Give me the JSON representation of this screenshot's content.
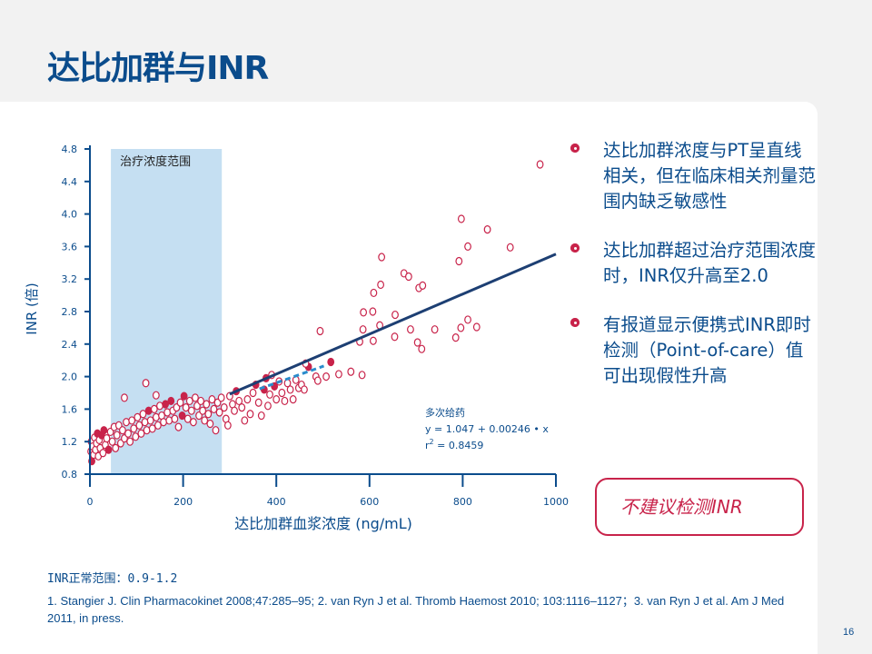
{
  "slide": {
    "title": "达比加群与INR",
    "page_number": "16",
    "bullets": [
      "达比加群浓度与PT呈直线相关，但在临床相关剂量范围内缺乏敏感性",
      "达比加群超过治疗范围浓度时，INR仅升高至2.0",
      "有报道显示便携式INR即时检测（Point-of-care）值可出现假性升高"
    ],
    "callout": "不建议检测INR",
    "normal_range": "INR正常范围：0.9-1.2",
    "references": "1. Stangier J. Clin Pharmacokinet 2008;47:285–95; 2. van Ryn J et al. Thromb Haemost 2010; 103:1116–1127；3. van Ryn J et al. Am J Med 2011, in press.",
    "colors": {
      "brand_blue": "#0b4c8c",
      "accent_red": "#c8234a",
      "shade": "#c5dff2",
      "dashed": "#2a8ccc"
    }
  },
  "chart_data": {
    "type": "scatter",
    "xlabel": "达比加群血浆浓度 (ng/mL)",
    "ylabel": "INR (倍)",
    "xlim": [
      0,
      1000
    ],
    "ylim": [
      0.8,
      4.8
    ],
    "xticks": [
      "0",
      "200",
      "400",
      "600",
      "800",
      "1000"
    ],
    "xtick_values": [
      0,
      200,
      400,
      600,
      800,
      1000
    ],
    "yticks": [
      "0.8",
      "1.2",
      "1.6",
      "2.0",
      "2.4",
      "2.8",
      "3.2",
      "3.6",
      "4.0",
      "4.4",
      "4.8"
    ],
    "ytick_values": [
      0.8,
      1.2,
      1.6,
      2.0,
      2.4,
      2.8,
      3.2,
      3.6,
      4.0,
      4.4,
      4.8
    ],
    "shaded_region": {
      "label": "治疗浓度范围",
      "x_range": [
        45,
        283
      ]
    },
    "regression": {
      "intercept": 1.047,
      "slope": 0.00246,
      "x_range": [
        300,
        1000
      ]
    },
    "dashed_fit": {
      "points": [
        [
          364,
          1.85
        ],
        [
          502,
          2.13
        ]
      ]
    },
    "annotation": {
      "line1": "多次给药",
      "line2": "y = 1.047 + 0.00246 • x",
      "line3_prefix": "r",
      "line3_sup": "2",
      "line3_suffix": " = 0.8459"
    },
    "points": [
      [
        966,
        4.61,
        0
      ],
      [
        797,
        3.94,
        0
      ],
      [
        853,
        3.81,
        0
      ],
      [
        811,
        3.6,
        0
      ],
      [
        902,
        3.59,
        0
      ],
      [
        792,
        3.42,
        0
      ],
      [
        626,
        3.47,
        0
      ],
      [
        674,
        3.27,
        0
      ],
      [
        684,
        3.23,
        0
      ],
      [
        624,
        3.13,
        0
      ],
      [
        609,
        3.03,
        0
      ],
      [
        706,
        3.09,
        0
      ],
      [
        714,
        3.12,
        0
      ],
      [
        587,
        2.79,
        0
      ],
      [
        607,
        2.8,
        0
      ],
      [
        655,
        2.76,
        0
      ],
      [
        494,
        2.56,
        0
      ],
      [
        586,
        2.58,
        0
      ],
      [
        622,
        2.63,
        0
      ],
      [
        688,
        2.58,
        0
      ],
      [
        740,
        2.58,
        0
      ],
      [
        811,
        2.7,
        0
      ],
      [
        796,
        2.6,
        0
      ],
      [
        830,
        2.61,
        0
      ],
      [
        785,
        2.48,
        0
      ],
      [
        579,
        2.43,
        0
      ],
      [
        608,
        2.44,
        0
      ],
      [
        654,
        2.49,
        0
      ],
      [
        703,
        2.42,
        0
      ],
      [
        712,
        2.34,
        0
      ],
      [
        485,
        2.0,
        0
      ],
      [
        489,
        1.95,
        0
      ],
      [
        507,
        2.0,
        0
      ],
      [
        534,
        2.03,
        0
      ],
      [
        560,
        2.06,
        0
      ],
      [
        584,
        2.02,
        0
      ],
      [
        517,
        2.18,
        1
      ],
      [
        469,
        2.12,
        1
      ],
      [
        463,
        2.16,
        0
      ],
      [
        120,
        1.92,
        0
      ],
      [
        74,
        1.74,
        0
      ],
      [
        142,
        1.77,
        0
      ],
      [
        2,
        1.08,
        0
      ],
      [
        3,
        1.2,
        0
      ],
      [
        4,
        0.96,
        1
      ],
      [
        6,
        1.14,
        0
      ],
      [
        8,
        1.04,
        0
      ],
      [
        10,
        1.25,
        0
      ],
      [
        12,
        1.1,
        0
      ],
      [
        14,
        1.18,
        0
      ],
      [
        16,
        1.3,
        1
      ],
      [
        18,
        1.02,
        0
      ],
      [
        20,
        1.22,
        0
      ],
      [
        22,
        1.12,
        0
      ],
      [
        25,
        1.28,
        1
      ],
      [
        28,
        1.06,
        0
      ],
      [
        30,
        1.34,
        1
      ],
      [
        33,
        1.16,
        0
      ],
      [
        36,
        1.24,
        0
      ],
      [
        40,
        1.1,
        1
      ],
      [
        44,
        1.32,
        0
      ],
      [
        48,
        1.2,
        0
      ],
      [
        52,
        1.38,
        0
      ],
      [
        55,
        1.12,
        0
      ],
      [
        58,
        1.28,
        0
      ],
      [
        62,
        1.4,
        0
      ],
      [
        66,
        1.18,
        0
      ],
      [
        70,
        1.34,
        0
      ],
      [
        74,
        1.24,
        0
      ],
      [
        78,
        1.44,
        0
      ],
      [
        82,
        1.3,
        0
      ],
      [
        86,
        1.2,
        0
      ],
      [
        90,
        1.46,
        0
      ],
      [
        94,
        1.36,
        0
      ],
      [
        98,
        1.26,
        0
      ],
      [
        102,
        1.5,
        0
      ],
      [
        106,
        1.4,
        0
      ],
      [
        110,
        1.3,
        0
      ],
      [
        114,
        1.54,
        0
      ],
      [
        118,
        1.44,
        0
      ],
      [
        122,
        1.34,
        0
      ],
      [
        126,
        1.58,
        1
      ],
      [
        130,
        1.46,
        0
      ],
      [
        134,
        1.36,
        0
      ],
      [
        138,
        1.6,
        0
      ],
      [
        142,
        1.5,
        0
      ],
      [
        146,
        1.4,
        0
      ],
      [
        150,
        1.64,
        0
      ],
      [
        154,
        1.52,
        0
      ],
      [
        158,
        1.44,
        0
      ],
      [
        162,
        1.66,
        1
      ],
      [
        166,
        1.56,
        0
      ],
      [
        170,
        1.46,
        0
      ],
      [
        174,
        1.7,
        1
      ],
      [
        178,
        1.58,
        0
      ],
      [
        182,
        1.48,
        0
      ],
      [
        186,
        1.62,
        0
      ],
      [
        190,
        1.38,
        0
      ],
      [
        194,
        1.68,
        0
      ],
      [
        198,
        1.52,
        1
      ],
      [
        202,
        1.76,
        1
      ],
      [
        206,
        1.62,
        0
      ],
      [
        210,
        1.48,
        0
      ],
      [
        214,
        1.7,
        0
      ],
      [
        218,
        1.58,
        0
      ],
      [
        222,
        1.44,
        0
      ],
      [
        226,
        1.74,
        0
      ],
      [
        230,
        1.64,
        0
      ],
      [
        234,
        1.52,
        0
      ],
      [
        238,
        1.7,
        0
      ],
      [
        242,
        1.58,
        0
      ],
      [
        246,
        1.46,
        0
      ],
      [
        250,
        1.66,
        0
      ],
      [
        254,
        1.54,
        0
      ],
      [
        258,
        1.42,
        0
      ],
      [
        262,
        1.72,
        0
      ],
      [
        266,
        1.6,
        0
      ],
      [
        270,
        1.34,
        0
      ],
      [
        274,
        1.68,
        0
      ],
      [
        278,
        1.56,
        0
      ],
      [
        282,
        1.74,
        0
      ],
      [
        288,
        1.62,
        0
      ],
      [
        292,
        1.48,
        0
      ],
      [
        296,
        1.4,
        0
      ],
      [
        300,
        1.76,
        0
      ],
      [
        306,
        1.66,
        0
      ],
      [
        310,
        1.58,
        0
      ],
      [
        314,
        1.82,
        1
      ],
      [
        320,
        1.7,
        0
      ],
      [
        326,
        1.62,
        0
      ],
      [
        332,
        1.46,
        0
      ],
      [
        338,
        1.72,
        0
      ],
      [
        344,
        1.54,
        0
      ],
      [
        350,
        1.8,
        0
      ],
      [
        356,
        1.9,
        1
      ],
      [
        362,
        1.68,
        0
      ],
      [
        368,
        1.52,
        0
      ],
      [
        374,
        1.84,
        1
      ],
      [
        378,
        1.98,
        1
      ],
      [
        382,
        1.64,
        0
      ],
      [
        386,
        1.78,
        0
      ],
      [
        390,
        2.02,
        0
      ],
      [
        396,
        1.88,
        1
      ],
      [
        400,
        1.72,
        0
      ],
      [
        406,
        1.94,
        0
      ],
      [
        412,
        1.8,
        0
      ],
      [
        418,
        1.7,
        0
      ],
      [
        424,
        1.92,
        0
      ],
      [
        430,
        1.84,
        0
      ],
      [
        436,
        1.72,
        0
      ],
      [
        442,
        1.96,
        0
      ],
      [
        448,
        1.86,
        0
      ],
      [
        454,
        1.9,
        0
      ],
      [
        460,
        1.84,
        0
      ]
    ]
  }
}
